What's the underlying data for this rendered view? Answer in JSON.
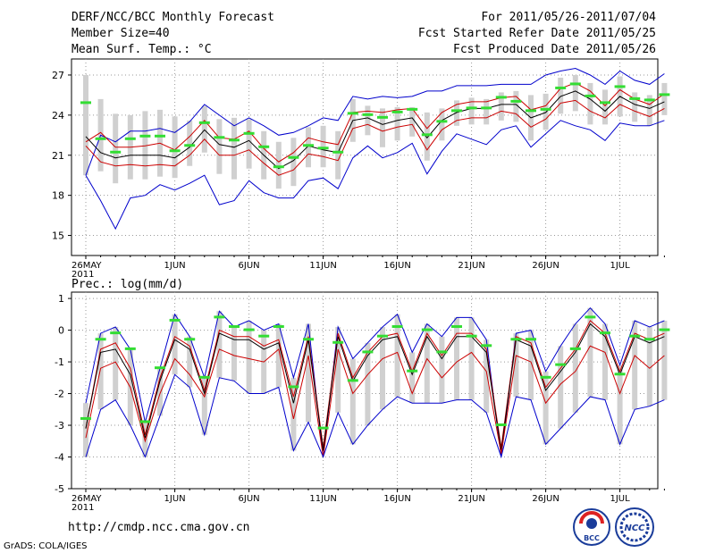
{
  "header": {
    "title": "DERF/NCC/BCC Monthly Forecast",
    "member_size": "Member Size=40",
    "variable_top": "Mean Surf. Temp.: °C",
    "period": "For 2011/05/26-2011/07/04",
    "started": "Fcst Started Refer Date 2011/05/25",
    "produced": "Fcst Produced Date 2011/05/26"
  },
  "footer": {
    "url": "http://cmdp.ncc.cma.gov.cn",
    "credit": "GrADS: COLA/IGES",
    "logo_bcc": "BCC",
    "logo_ncc": "NCC"
  },
  "colors": {
    "outer": "#0000cc",
    "inner": "#cc0000",
    "mean": "#000000",
    "obs": "#33dd33",
    "box": "#d0d0d0",
    "grid": "#999999"
  },
  "chart_data": [
    {
      "type": "line",
      "title": "Mean Surf. Temp.: °C",
      "x": [
        "26MAY",
        "27",
        "28",
        "29",
        "30",
        "31",
        "1JUN",
        "2",
        "3",
        "4",
        "5",
        "6",
        "7",
        "8",
        "9",
        "10",
        "11",
        "12",
        "13",
        "14",
        "15",
        "16",
        "17",
        "18",
        "19",
        "20",
        "21",
        "22",
        "23",
        "24",
        "25",
        "26",
        "27",
        "28",
        "29",
        "30",
        "1JUL",
        "2",
        "3",
        "4"
      ],
      "x_tick_labels": [
        "26MAY\n2011",
        "1JUN",
        "6JUN",
        "11JUN",
        "16JUN",
        "21JUN",
        "26JUN",
        "1JUL"
      ],
      "x_tick_index": [
        0,
        6,
        11,
        16,
        21,
        26,
        31,
        36
      ],
      "ylim": [
        13.5,
        28.2
      ],
      "yticks": [
        15,
        18,
        21,
        24,
        27
      ],
      "series": [
        {
          "name": "upper bound",
          "values": [
            19.5,
            22.5,
            22,
            22.8,
            22.8,
            23,
            22.7,
            23.5,
            24.8,
            24,
            23.2,
            23.8,
            23.2,
            22.5,
            22.7,
            23.2,
            23.8,
            23.6,
            25.4,
            25.2,
            25.4,
            25.3,
            25.4,
            25.8,
            25.8,
            26.2,
            26.2,
            26.2,
            26.3,
            26.3,
            26.3,
            27,
            27.3,
            27.5,
            27,
            26.3,
            27.3,
            26.6,
            26.3,
            27.1
          ]
        },
        {
          "name": "upper spread",
          "values": [
            22,
            22.7,
            21.6,
            21.6,
            21.7,
            21.9,
            21.4,
            22.4,
            23.6,
            22.3,
            22.2,
            22.8,
            21.5,
            20.5,
            21.2,
            22.3,
            22,
            21.8,
            24.2,
            24.3,
            24.2,
            24.4,
            24.5,
            23,
            24.2,
            24.8,
            25,
            25,
            25.3,
            25.4,
            24.4,
            24.7,
            26,
            26.4,
            25.8,
            24.7,
            25.9,
            25.2,
            24.8,
            25.6
          ]
        },
        {
          "name": "ensemble mean",
          "values": [
            22.4,
            21.2,
            20.8,
            21,
            21,
            21,
            20.8,
            21.6,
            22.9,
            21.8,
            21.6,
            22.1,
            21,
            20,
            20.6,
            21.7,
            21.4,
            21.2,
            23.6,
            23.8,
            23.3,
            23.6,
            23.8,
            22.3,
            23.6,
            24.2,
            24.5,
            24.5,
            24.8,
            24.8,
            23.8,
            24.2,
            25.4,
            25.8,
            25.2,
            24.3,
            25.4,
            24.8,
            24.5,
            25
          ]
        },
        {
          "name": "lower spread",
          "values": [
            21.7,
            20.5,
            20.2,
            20.3,
            20.2,
            20.3,
            20.2,
            21,
            22.2,
            21,
            21,
            21.4,
            20.4,
            19.5,
            19.9,
            21.1,
            20.9,
            20.6,
            23,
            23.3,
            22.8,
            23.1,
            23.3,
            21.4,
            22.9,
            23.6,
            23.8,
            23.8,
            24.3,
            24.1,
            23.1,
            23.7,
            24.9,
            25.1,
            24.3,
            23.8,
            24.8,
            24.3,
            23.9,
            24.5
          ]
        },
        {
          "name": "lower bound",
          "values": [
            19.5,
            17.6,
            15.5,
            17.8,
            18,
            18.8,
            18.4,
            18.9,
            19.5,
            17.3,
            17.6,
            19.1,
            18.2,
            17.8,
            17.8,
            19.1,
            19.3,
            18.5,
            20.8,
            21.7,
            20.8,
            21.2,
            21.9,
            19.6,
            21.3,
            22.6,
            22.2,
            21.8,
            22.9,
            23.2,
            21.6,
            22.6,
            23.6,
            23.2,
            22.9,
            22.1,
            23.4,
            23.2,
            23.2,
            23.6
          ]
        }
      ],
      "observed": [
        24.9,
        22.2,
        21.2,
        22.2,
        22.4,
        22.4,
        21.3,
        21.7,
        23.4,
        22.3,
        22.1,
        22.6,
        21.6,
        20.1,
        20.8,
        21.7,
        21.5,
        21.2,
        24.1,
        24,
        23.8,
        24.2,
        24.4,
        22.5,
        23.5,
        24.3,
        24.5,
        24.5,
        25.3,
        25,
        24.3,
        24.4,
        26,
        26.3,
        25.4,
        24.9,
        26.1,
        25.2,
        25.1,
        25.5
      ],
      "box_top": [
        27,
        25.2,
        24.1,
        24,
        24.3,
        24.4,
        23.9,
        23.6,
        24.7,
        23.7,
        23.8,
        23.7,
        22.8,
        22,
        22.3,
        23.1,
        23.2,
        22.8,
        25.2,
        24.7,
        24.5,
        24.6,
        24.6,
        24.2,
        24.5,
        25.1,
        25.3,
        25.2,
        25.7,
        25.8,
        25.5,
        25.6,
        26.8,
        27,
        26.4,
        25.9,
        26.9,
        25.7,
        25.5,
        26.4
      ],
      "box_bottom": [
        19.5,
        19.8,
        18.9,
        19.2,
        19.2,
        19.4,
        19.3,
        20.2,
        21.2,
        19.6,
        19.2,
        20,
        19.2,
        18.5,
        18.7,
        20.1,
        20.1,
        19.2,
        22,
        22.5,
        21.6,
        22.1,
        22.4,
        20.6,
        22.1,
        23.2,
        23.3,
        23.3,
        23.6,
        23.5,
        22.1,
        22.9,
        24.1,
        24.3,
        23.3,
        23.3,
        23.9,
        23.5,
        23.2,
        24
      ]
    },
    {
      "type": "line",
      "title": "Prec.: log(mm/d)",
      "x": [
        "26MAY",
        "27",
        "28",
        "29",
        "30",
        "31",
        "1JUN",
        "2",
        "3",
        "4",
        "5",
        "6",
        "7",
        "8",
        "9",
        "10",
        "11",
        "12",
        "13",
        "14",
        "15",
        "16",
        "17",
        "18",
        "19",
        "20",
        "21",
        "22",
        "23",
        "24",
        "25",
        "26",
        "27",
        "28",
        "29",
        "30",
        "1JUL",
        "2",
        "3",
        "4"
      ],
      "x_tick_labels": [
        "26MAY\n2011",
        "1JUN",
        "6JUN",
        "11JUN",
        "16JUN",
        "21JUN",
        "26JUN",
        "1JUL"
      ],
      "x_tick_index": [
        0,
        6,
        11,
        16,
        21,
        26,
        31,
        36
      ],
      "ylim": [
        -5,
        1.2
      ],
      "yticks": [
        -5,
        -4,
        -3,
        -2,
        -1,
        0,
        1
      ],
      "series": [
        {
          "name": "upper bound",
          "values": [
            -2.3,
            -0.1,
            0.1,
            -0.6,
            -2.9,
            -1.2,
            0.5,
            -0.2,
            -1.5,
            0.6,
            0.1,
            0.3,
            0,
            0.2,
            -1.5,
            0.2,
            -4,
            0.1,
            -0.9,
            -0.4,
            0.1,
            0.5,
            -0.7,
            0.2,
            -0.2,
            0.4,
            0.4,
            -0.3,
            -4,
            -0.1,
            0,
            -1.3,
            -0.5,
            0.2,
            0.7,
            0.2,
            -1.1,
            0.3,
            0.1,
            0.3
          ]
        },
        {
          "name": "upper spread",
          "values": [
            -3.1,
            -0.6,
            -0.4,
            -1.2,
            -3.3,
            -1.5,
            -0.2,
            -0.5,
            -1.9,
            0,
            -0.2,
            -0.2,
            -0.5,
            -0.3,
            -2.1,
            -0.2,
            -3.7,
            -0.1,
            -1.5,
            -0.7,
            -0.2,
            -0.1,
            -1.3,
            -0.1,
            -0.8,
            -0.1,
            -0.1,
            -0.6,
            -3.7,
            -0.2,
            -0.4,
            -1.8,
            -1.2,
            -0.6,
            0.3,
            -0.1,
            -1.3,
            -0.1,
            -0.3,
            -0.1
          ]
        },
        {
          "name": "ensemble mean",
          "values": [
            -3.1,
            -0.7,
            -0.6,
            -1.4,
            -3.4,
            -1.6,
            -0.3,
            -0.6,
            -2,
            -0.1,
            -0.3,
            -0.3,
            -0.6,
            -0.4,
            -2.3,
            -0.3,
            -3.8,
            -0.2,
            -1.6,
            -0.8,
            -0.3,
            -0.2,
            -1.4,
            -0.2,
            -0.9,
            -0.2,
            -0.2,
            -0.7,
            -3.8,
            -0.3,
            -0.5,
            -1.9,
            -1.3,
            -0.7,
            0.2,
            -0.2,
            -1.4,
            -0.2,
            -0.4,
            -0.2
          ]
        },
        {
          "name": "lower spread",
          "values": [
            -3.4,
            -1.2,
            -1,
            -1.8,
            -3.5,
            -2,
            -0.9,
            -1.4,
            -2.1,
            -0.6,
            -0.8,
            -0.9,
            -1,
            -0.6,
            -2.8,
            -0.8,
            -4,
            -0.6,
            -2,
            -1.4,
            -0.9,
            -0.7,
            -2,
            -0.9,
            -1.5,
            -1,
            -0.7,
            -1.3,
            -3.9,
            -0.8,
            -1,
            -2.3,
            -1.7,
            -1.3,
            -0.5,
            -0.7,
            -2,
            -0.8,
            -1.2,
            -0.8
          ]
        },
        {
          "name": "lower bound",
          "values": [
            -4,
            -2.5,
            -2.2,
            -3,
            -4,
            -2.7,
            -1.4,
            -1.8,
            -3.3,
            -1.5,
            -1.6,
            -2,
            -2,
            -1.8,
            -3.8,
            -2.9,
            -4,
            -2.6,
            -3.6,
            -3,
            -2.5,
            -2.1,
            -2.3,
            -2.3,
            -2.3,
            -2.2,
            -2.2,
            -2.6,
            -4,
            -2.1,
            -2.2,
            -3.6,
            -3.1,
            -2.6,
            -2.1,
            -2.2,
            -3.6,
            -2.5,
            -2.4,
            -2.2
          ]
        }
      ],
      "observed": [
        -2.8,
        -0.3,
        -0.1,
        -0.6,
        -2.9,
        -1.2,
        0.3,
        -0.3,
        -1.5,
        0.4,
        0.1,
        0,
        -0.2,
        0.1,
        -1.8,
        -0.3,
        -3.1,
        -0.4,
        -1.6,
        -0.7,
        -0.2,
        0.1,
        -1.3,
        0,
        -0.7,
        0.1,
        -0.2,
        -0.5,
        -3,
        -0.3,
        -0.3,
        -1.5,
        -1.1,
        -0.6,
        0.4,
        -0.1,
        -1.4,
        -0.2,
        -0.3,
        0
      ]
    }
  ]
}
